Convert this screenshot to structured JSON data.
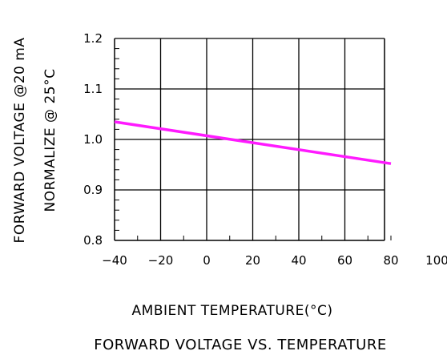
{
  "chart_data": {
    "type": "line",
    "title": "FORWARD VOLTAGE VS. TEMPERATURE",
    "xlabel": "AMBIENT TEMPERATURE(°C)",
    "ylabel_line1": "FORWARD VOLTAGE @20 mA",
    "ylabel_line2": "NORMALIZE @ 25°C",
    "xlim": [
      -40,
      100
    ],
    "ylim": [
      0.8,
      1.2
    ],
    "x_ticks": [
      "−40",
      "−20",
      "0",
      "20",
      "40",
      "60",
      "80",
      "100"
    ],
    "x_tick_values": [
      -40,
      -20,
      0,
      20,
      40,
      60,
      80,
      100
    ],
    "y_ticks": [
      "0.8",
      "0.9",
      "1.0",
      "1.1",
      "1.2"
    ],
    "y_tick_values": [
      0.8,
      0.9,
      1.0,
      1.1,
      1.2
    ],
    "grid": true,
    "series": [
      {
        "x": [
          -40,
          80
        ],
        "y": [
          1.035,
          0.952
        ],
        "color": "#ff1aff"
      }
    ]
  }
}
